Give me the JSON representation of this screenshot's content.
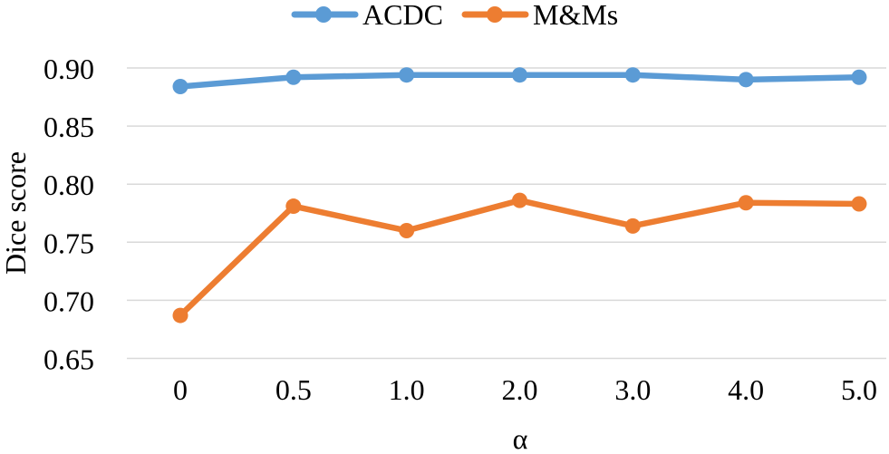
{
  "chart_data": {
    "type": "line",
    "title": "",
    "xlabel": "α",
    "ylabel": "Dice score",
    "categories": [
      "0",
      "0.5",
      "1.0",
      "2.0",
      "3.0",
      "4.0",
      "5.0"
    ],
    "series": [
      {
        "name": "ACDC",
        "color": "#5B9BD5",
        "values": [
          0.884,
          0.892,
          0.894,
          0.894,
          0.894,
          0.89,
          0.892
        ]
      },
      {
        "name": "M&Ms",
        "color": "#ED7D31",
        "values": [
          0.687,
          0.781,
          0.76,
          0.786,
          0.764,
          0.784,
          0.783
        ]
      }
    ],
    "ylim": [
      0.65,
      0.9
    ],
    "yticks": [
      {
        "value": 0.9,
        "label": "0.90"
      },
      {
        "value": 0.85,
        "label": "0.85"
      },
      {
        "value": 0.8,
        "label": "0.80"
      },
      {
        "value": 0.75,
        "label": "0.75"
      },
      {
        "value": 0.7,
        "label": "0.70"
      },
      {
        "value": 0.65,
        "label": "0.65"
      }
    ],
    "grid": "horizontal",
    "grid_color": "#D9D9D9",
    "background": "#FFFFFF",
    "text_color": "#000000",
    "legend_position": "top-center",
    "marker": "circle"
  }
}
